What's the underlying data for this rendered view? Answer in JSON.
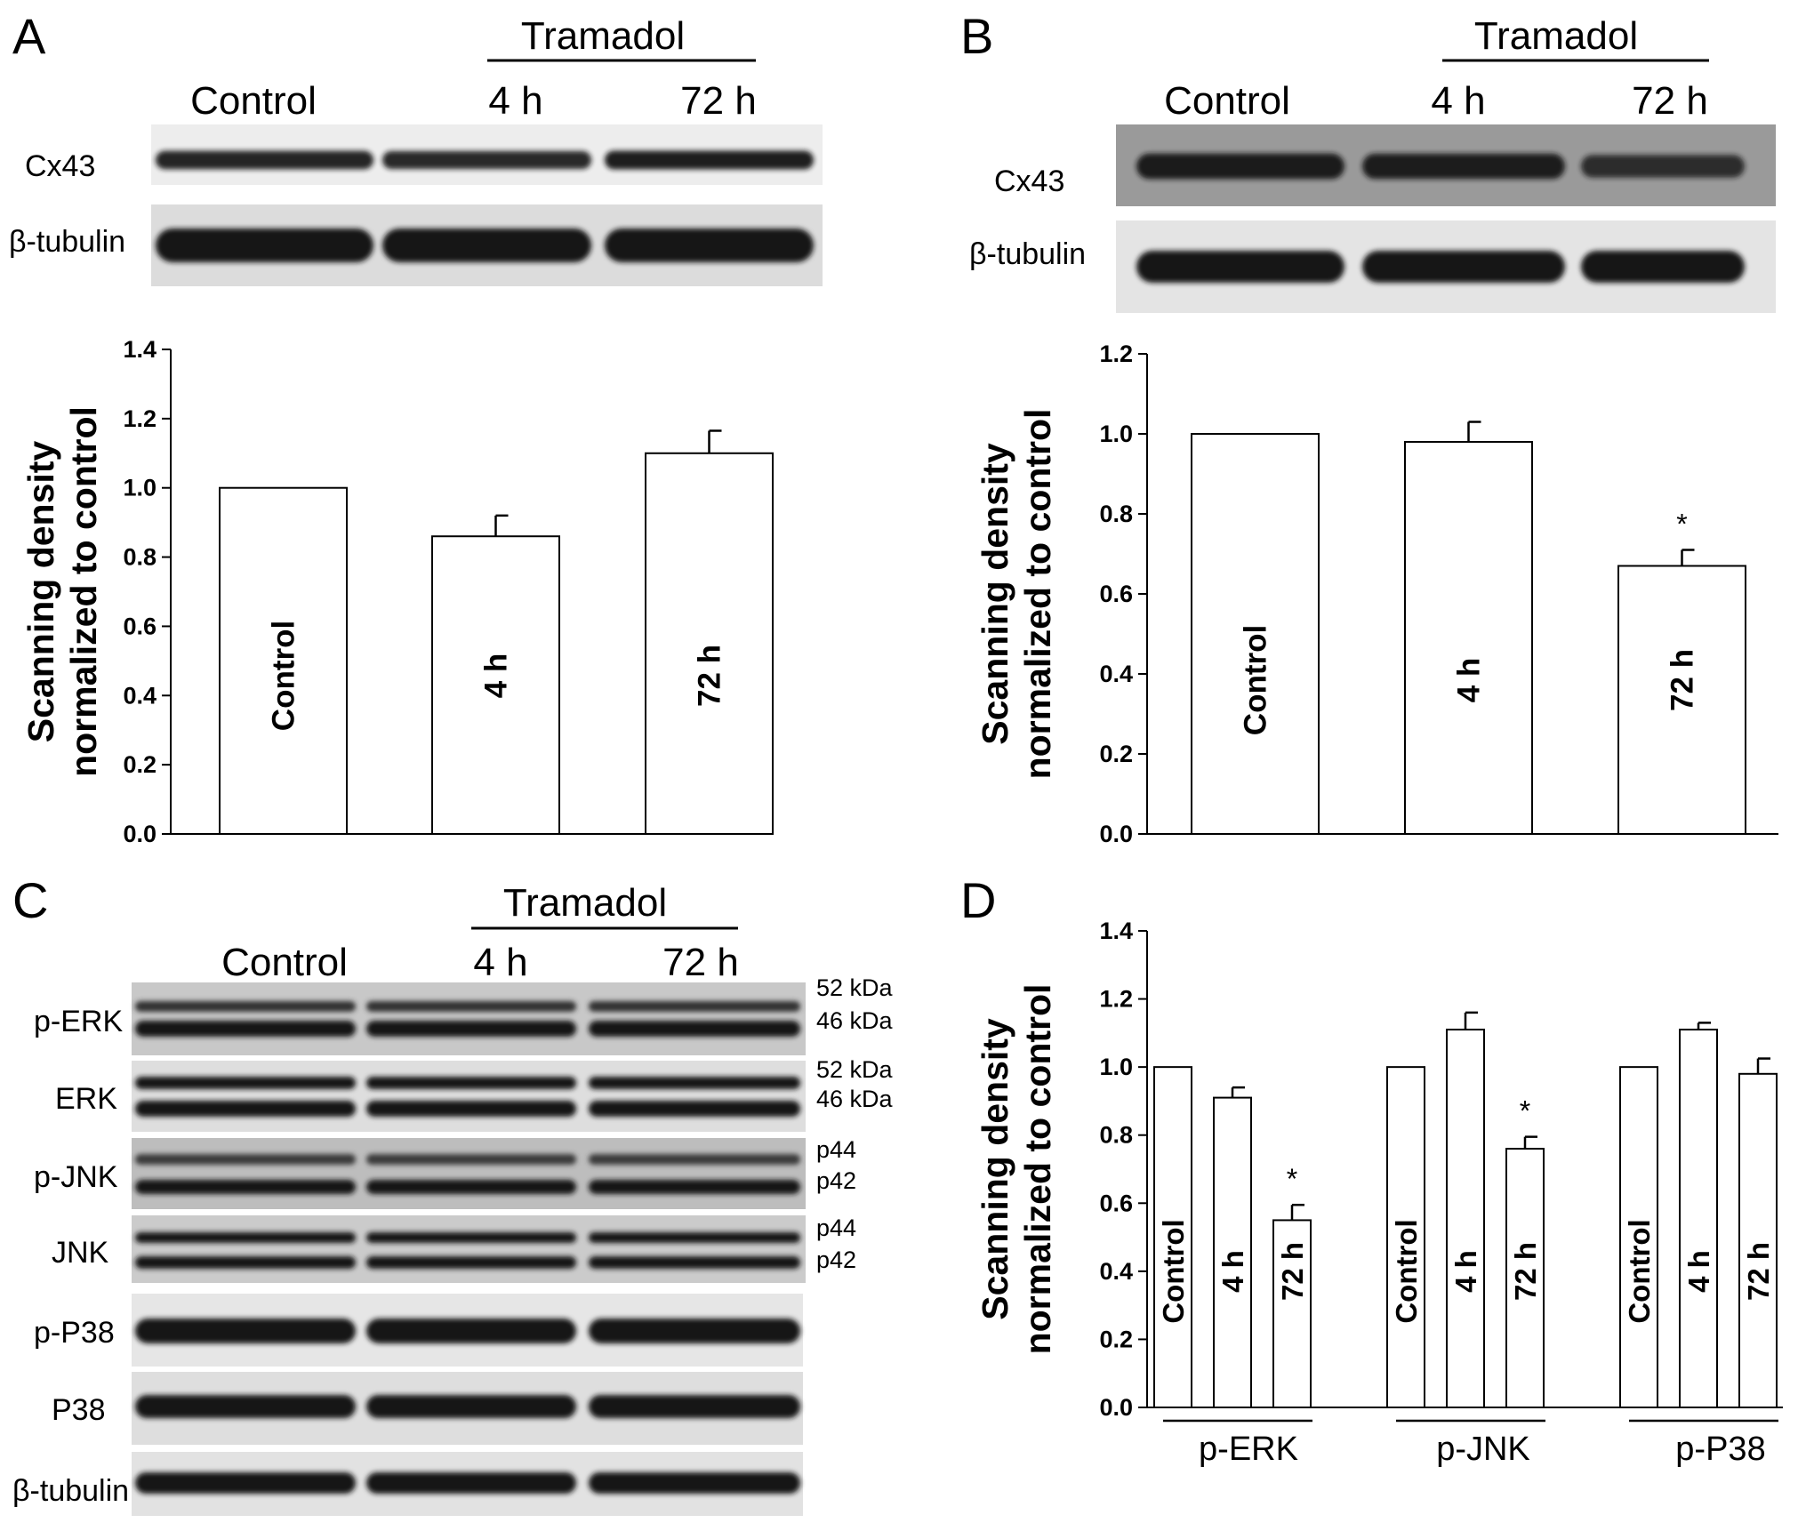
{
  "panels": {
    "A": {
      "letter": "A",
      "treatment": "Tramadol",
      "lanes": [
        "Control",
        "4 h",
        "72 h"
      ],
      "blots": [
        {
          "label": "Cx43",
          "band_strength": [
            0.85,
            0.8,
            0.9
          ]
        },
        {
          "label": "β-tubulin",
          "band_strength": [
            1.0,
            1.0,
            1.0
          ]
        }
      ]
    },
    "B": {
      "letter": "B",
      "treatment": "Tramadol",
      "lanes": [
        "Control",
        "4 h",
        "72 h"
      ],
      "blots": [
        {
          "label": "Cx43",
          "band_strength": [
            0.9,
            0.88,
            0.62
          ]
        },
        {
          "label": "β-tubulin",
          "band_strength": [
            1.0,
            1.0,
            1.0
          ]
        }
      ]
    },
    "C": {
      "letter": "C",
      "treatment": "Tramadol",
      "lanes": [
        "Control",
        "4 h",
        "72 h"
      ],
      "blots": [
        {
          "label": "p-ERK",
          "mw": [
            "52 kDa",
            "46 kDa"
          ]
        },
        {
          "label": "ERK",
          "mw": [
            "52 kDa",
            "46 kDa"
          ]
        },
        {
          "label": "p-JNK",
          "mw": [
            "p44",
            "p42"
          ]
        },
        {
          "label": "JNK",
          "mw": [
            "p44",
            "p42"
          ]
        },
        {
          "label": "p-P38",
          "mw": []
        },
        {
          "label": "P38",
          "mw": []
        },
        {
          "label": "β-tubulin",
          "mw": []
        }
      ]
    },
    "D": {
      "letter": "D"
    }
  },
  "chart_data": [
    {
      "panel": "A",
      "type": "bar",
      "categories": [
        "Control",
        "4 h",
        "72 h"
      ],
      "values": [
        1.0,
        0.86,
        1.1
      ],
      "errors": [
        0,
        0.06,
        0.065
      ],
      "significant": [
        false,
        false,
        false
      ],
      "ylabel": "Scanning density\nnormalized to control",
      "ylim": [
        0,
        1.4
      ],
      "yticks": [
        "0.0",
        "0.2",
        "0.4",
        "0.6",
        "0.8",
        "1.0",
        "1.2",
        "1.4"
      ]
    },
    {
      "panel": "B",
      "type": "bar",
      "categories": [
        "Control",
        "4 h",
        "72 h"
      ],
      "values": [
        1.0,
        0.98,
        0.67
      ],
      "errors": [
        0,
        0.05,
        0.04
      ],
      "significant": [
        false,
        false,
        true
      ],
      "significance_mark": "*",
      "ylabel": "Scanning density\nnormalized to control",
      "ylim": [
        0,
        1.2
      ],
      "yticks": [
        "0.0",
        "0.2",
        "0.4",
        "0.6",
        "0.8",
        "1.0",
        "1.2"
      ]
    },
    {
      "panel": "D",
      "type": "bar",
      "groups": [
        "p-ERK",
        "p-JNK",
        "p-P38"
      ],
      "categories": [
        "Control",
        "4 h",
        "72 h"
      ],
      "series": [
        {
          "group": "p-ERK",
          "values": [
            1.0,
            0.91,
            0.55
          ],
          "errors": [
            0,
            0.03,
            0.045
          ],
          "significant": [
            false,
            false,
            true
          ]
        },
        {
          "group": "p-JNK",
          "values": [
            1.0,
            1.11,
            0.76
          ],
          "errors": [
            0,
            0.05,
            0.035
          ],
          "significant": [
            false,
            false,
            true
          ]
        },
        {
          "group": "p-P38",
          "values": [
            1.0,
            1.11,
            0.98
          ],
          "errors": [
            0,
            0.02,
            0.045
          ],
          "significant": [
            false,
            false,
            false
          ]
        }
      ],
      "significance_mark": "*",
      "ylabel": "Scanning density\nnormalized to control",
      "ylim": [
        0,
        1.4
      ],
      "yticks": [
        "0.0",
        "0.2",
        "0.4",
        "0.6",
        "0.8",
        "1.0",
        "1.2",
        "1.4"
      ]
    }
  ]
}
